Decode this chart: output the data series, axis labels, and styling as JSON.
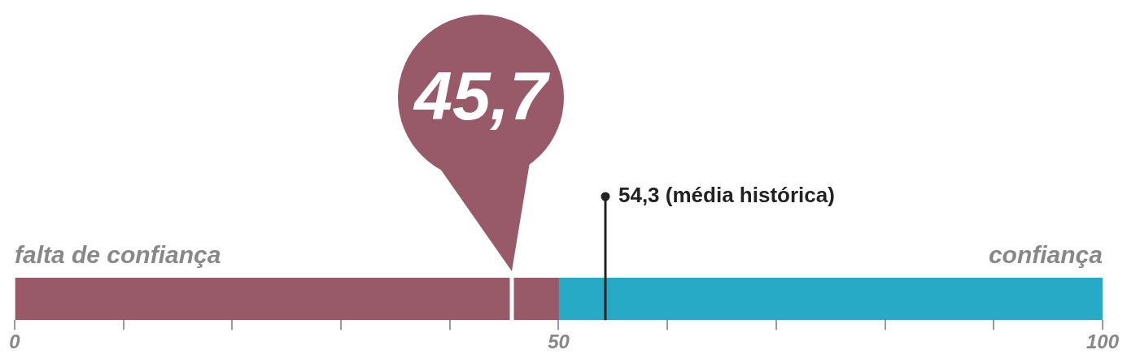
{
  "chart_data": {
    "type": "bar",
    "orientation": "horizontal",
    "stacked": true,
    "categories": [
      null
    ],
    "series": [
      {
        "name": "falta de confiança",
        "color": "#985a69",
        "values": [
          50
        ]
      },
      {
        "name": "confiança",
        "color": "#26aac6",
        "values": [
          50
        ]
      }
    ],
    "xlim": [
      0,
      100
    ],
    "xticks": [
      0,
      {
        "value": 10,
        "label": null
      },
      {
        "value": 20,
        "label": null
      },
      {
        "value": 30,
        "label": null
      },
      {
        "value": 40,
        "label": null
      },
      50,
      {
        "value": 60,
        "label": null
      },
      {
        "value": 70,
        "label": null
      },
      {
        "value": 80,
        "label": null
      },
      {
        "value": 90,
        "label": null
      },
      100
    ],
    "ref_lines": [
      {
        "axis": "x",
        "value": 45.7,
        "label": "45,7",
        "color": "#ffffff"
      },
      {
        "axis": "x",
        "value": 54.3,
        "label": "54,3 (média histórica)",
        "color": "#222222"
      }
    ],
    "tick_labels": "x",
    "grid": false,
    "legend": false
  }
}
